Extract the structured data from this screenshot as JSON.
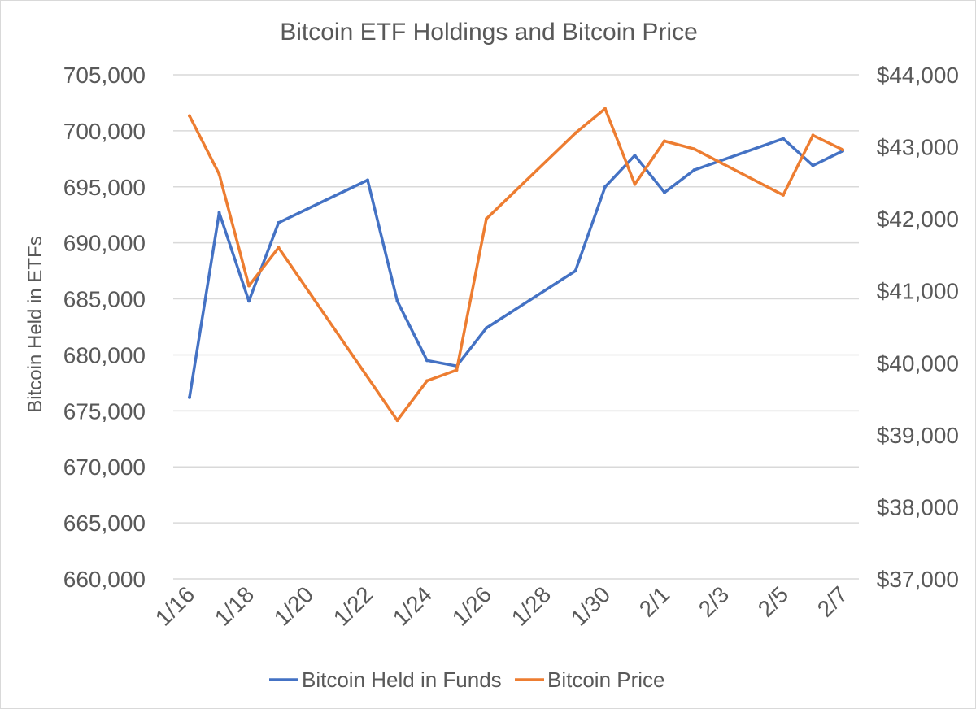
{
  "chart_data": {
    "type": "line",
    "title": "Bitcoin ETF Holdings and Bitcoin Price",
    "ylabel": "Bitcoin Held in ETFs",
    "y2label": "",
    "ylim": [
      660000,
      705000
    ],
    "yticks": [
      705000,
      700000,
      695000,
      690000,
      685000,
      680000,
      675000,
      670000,
      665000,
      660000
    ],
    "ytick_labels": [
      "705,000",
      "700,000",
      "695,000",
      "690,000",
      "685,000",
      "680,000",
      "675,000",
      "670,000",
      "665,000",
      "660,000"
    ],
    "y2lim": [
      37000,
      44000
    ],
    "y2ticks": [
      44000,
      43000,
      42000,
      41000,
      40000,
      39000,
      38000,
      37000
    ],
    "y2tick_labels": [
      "$44,000",
      "$43,000",
      "$42,000",
      "$41,000",
      "$40,000",
      "$39,000",
      "$38,000",
      "$37,000"
    ],
    "x_range": [
      "2024-01-16",
      "2024-02-07"
    ],
    "xtick_dates": [
      "2024-01-16",
      "2024-01-18",
      "2024-01-20",
      "2024-01-22",
      "2024-01-24",
      "2024-01-26",
      "2024-01-28",
      "2024-01-30",
      "2024-02-01",
      "2024-02-03",
      "2024-02-05",
      "2024-02-07"
    ],
    "xtick_labels": [
      "1/16",
      "1/18",
      "1/20",
      "1/22",
      "1/24",
      "1/26",
      "1/28",
      "1/30",
      "2/1",
      "2/3",
      "2/5",
      "2/7"
    ],
    "grid": true,
    "legend_position": "bottom",
    "series": [
      {
        "name": "Bitcoin Held in Funds",
        "axis": "left",
        "color": "#4472c4",
        "x": [
          "2024-01-16",
          "2024-01-17",
          "2024-01-18",
          "2024-01-19",
          "2024-01-22",
          "2024-01-23",
          "2024-01-24",
          "2024-01-25",
          "2024-01-26",
          "2024-01-29",
          "2024-01-30",
          "2024-01-31",
          "2024-02-01",
          "2024-02-02",
          "2024-02-05",
          "2024-02-06",
          "2024-02-07"
        ],
        "values": [
          676200,
          692700,
          684800,
          691800,
          695600,
          684800,
          679500,
          679000,
          682400,
          687500,
          695000,
          697800,
          694500,
          696500,
          699300,
          696900,
          698200
        ]
      },
      {
        "name": "Bitcoin Price",
        "axis": "right",
        "color": "#ed7d31",
        "x": [
          "2024-01-16",
          "2024-01-17",
          "2024-01-18",
          "2024-01-19",
          "2024-01-23",
          "2024-01-24",
          "2024-01-25",
          "2024-01-26",
          "2024-01-29",
          "2024-01-30",
          "2024-01-31",
          "2024-02-01",
          "2024-02-02",
          "2024-02-05",
          "2024-02-06",
          "2024-02-07"
        ],
        "values": [
          43430,
          42620,
          41070,
          41600,
          39200,
          39750,
          39900,
          42000,
          43190,
          43530,
          42480,
          43080,
          42970,
          42330,
          43160,
          42960
        ]
      }
    ]
  }
}
